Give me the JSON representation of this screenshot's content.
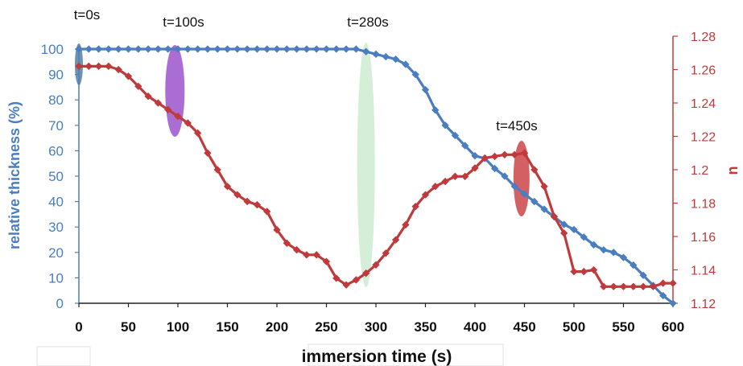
{
  "chart_data": {
    "type": "line",
    "title": "",
    "xlabel": "immersion time (s)",
    "ylabel": "relative thickness (%)",
    "y2label": "n",
    "xlim": [
      0,
      600
    ],
    "ylim": [
      0,
      100
    ],
    "y2lim": [
      1.12,
      1.28
    ],
    "x_ticks": [
      "0",
      "50",
      "100",
      "150",
      "200",
      "250",
      "300",
      "350",
      "400",
      "450",
      "500",
      "550",
      "600"
    ],
    "y_ticks": [
      "0",
      "10",
      "20",
      "30",
      "40",
      "50",
      "60",
      "70",
      "80",
      "90",
      "100"
    ],
    "y2_ticks": [
      "1.12",
      "1.14",
      "1.16",
      "1.18",
      "1.2",
      "1.22",
      "1.24",
      "1.26",
      "1.28"
    ],
    "grid": false,
    "colors": {
      "thickness": "#4a7ec0",
      "n": "#c0393b"
    },
    "series": [
      {
        "axis": "left",
        "x": [
          0,
          10,
          20,
          30,
          40,
          50,
          60,
          70,
          80,
          90,
          100,
          110,
          120,
          130,
          140,
          150,
          160,
          170,
          180,
          190,
          200,
          210,
          220,
          230,
          240,
          250,
          260,
          270,
          280,
          290,
          300,
          310,
          320,
          330,
          340,
          350,
          360,
          370,
          380,
          390,
          400,
          410,
          420,
          430,
          440,
          450,
          460,
          470,
          480,
          490,
          500,
          510,
          520,
          530,
          540,
          550,
          560,
          570,
          580,
          590,
          600
        ],
        "values": [
          100,
          100,
          100,
          100,
          100,
          100,
          100,
          100,
          100,
          100,
          100,
          100,
          100,
          100,
          100,
          100,
          100,
          100,
          100,
          100,
          100,
          100,
          100,
          100,
          100,
          100,
          100,
          100,
          100,
          99,
          98,
          97,
          96,
          94,
          90,
          84,
          76,
          70,
          66,
          62,
          58,
          57,
          53,
          50,
          46,
          43,
          40,
          37,
          34,
          31,
          29,
          26,
          23,
          21,
          20,
          18,
          15,
          11,
          7,
          3,
          0
        ]
      },
      {
        "axis": "right",
        "x": [
          0,
          10,
          20,
          30,
          40,
          50,
          60,
          70,
          80,
          90,
          100,
          110,
          120,
          130,
          140,
          150,
          160,
          170,
          180,
          190,
          200,
          210,
          220,
          230,
          240,
          250,
          260,
          270,
          280,
          290,
          300,
          310,
          320,
          330,
          340,
          350,
          360,
          370,
          380,
          390,
          400,
          410,
          420,
          430,
          440,
          450,
          460,
          470,
          480,
          490,
          500,
          510,
          520,
          530,
          540,
          550,
          560,
          570,
          580,
          590,
          600
        ],
        "values": [
          1.262,
          1.262,
          1.262,
          1.262,
          1.26,
          1.256,
          1.25,
          1.244,
          1.24,
          1.236,
          1.232,
          1.228,
          1.222,
          1.21,
          1.2,
          1.19,
          1.185,
          1.181,
          1.179,
          1.175,
          1.164,
          1.156,
          1.152,
          1.149,
          1.149,
          1.145,
          1.135,
          1.131,
          1.134,
          1.138,
          1.143,
          1.15,
          1.158,
          1.167,
          1.178,
          1.185,
          1.19,
          1.193,
          1.196,
          1.196,
          1.201,
          1.207,
          1.208,
          1.209,
          1.209,
          1.21,
          1.2,
          1.19,
          1.172,
          1.162,
          1.139,
          1.139,
          1.14,
          1.13,
          1.13,
          1.13,
          1.13,
          1.13,
          1.13,
          1.132,
          1.132
        ]
      }
    ],
    "annotations": [
      {
        "text": "t=0s",
        "x": 0,
        "color": "#3f6d94"
      },
      {
        "text": "t=100s",
        "x": 97,
        "color": "#8e3cc4"
      },
      {
        "text": "t=280s",
        "x": 290,
        "color": "#9fd9a6"
      },
      {
        "text": "t=450s",
        "x": 447,
        "color": "#c8393c"
      }
    ]
  }
}
